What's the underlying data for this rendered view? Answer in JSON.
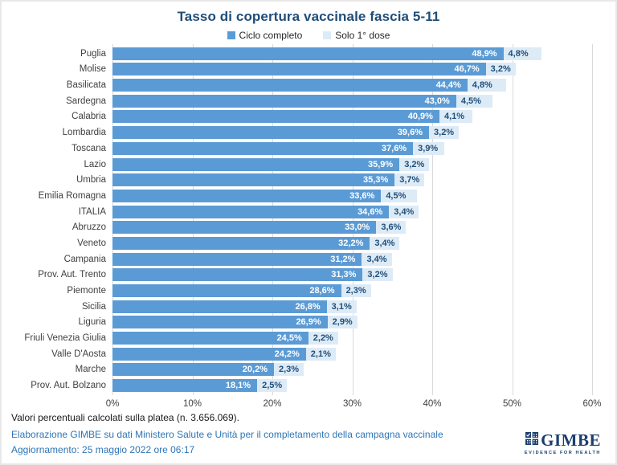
{
  "title": "Tasso di copertura vaccinale fascia 5-11",
  "legend": [
    {
      "label": "Ciclo completo",
      "color": "#5B9BD5"
    },
    {
      "label": "Solo 1° dose",
      "color": "#DDEBF7"
    }
  ],
  "chart_data": {
    "type": "bar",
    "orientation": "horizontal",
    "stacked": true,
    "title": "Tasso di copertura vaccinale fascia 5-11",
    "xlabel": "",
    "ylabel": "",
    "xlim": [
      0,
      60
    ],
    "x_ticks": [
      "0%",
      "10%",
      "20%",
      "30%",
      "40%",
      "50%",
      "60%"
    ],
    "grid": "vertical",
    "legend_position": "top",
    "categories": [
      "Puglia",
      "Molise",
      "Basilicata",
      "Sardegna",
      "Calabria",
      "Lombardia",
      "Toscana",
      "Lazio",
      "Umbria",
      "Emilia Romagna",
      "ITALIA",
      "Abruzzo",
      "Veneto",
      "Campania",
      "Prov. Aut. Trento",
      "Piemonte",
      "Sicilia",
      "Liguria",
      "Friuli Venezia Giulia",
      "Valle D'Aosta",
      "Marche",
      "Prov. Aut. Bolzano"
    ],
    "series": [
      {
        "name": "Ciclo completo",
        "color": "#5B9BD5",
        "values": [
          48.9,
          46.7,
          44.4,
          43.0,
          40.9,
          39.6,
          37.6,
          35.9,
          35.3,
          33.6,
          34.6,
          33.0,
          32.2,
          31.2,
          31.3,
          28.6,
          26.8,
          26.9,
          24.5,
          24.2,
          20.2,
          18.1
        ],
        "labels": [
          "48,9%",
          "46,7%",
          "44,4%",
          "43,0%",
          "40,9%",
          "39,6%",
          "37,6%",
          "35,9%",
          "35,3%",
          "33,6%",
          "34,6%",
          "33,0%",
          "32,2%",
          "31,2%",
          "31,3%",
          "28,6%",
          "26,8%",
          "26,9%",
          "24,5%",
          "24,2%",
          "20,2%",
          "18,1%"
        ]
      },
      {
        "name": "Solo 1° dose",
        "color": "#DDEBF7",
        "values": [
          4.8,
          3.2,
          4.8,
          4.5,
          4.1,
          3.2,
          3.9,
          3.2,
          3.7,
          4.5,
          3.4,
          3.6,
          3.4,
          3.4,
          3.2,
          2.3,
          3.1,
          2.9,
          2.2,
          2.1,
          2.3,
          2.5
        ],
        "labels": [
          "4,8%",
          "3,2%",
          "4,8%",
          "4,5%",
          "4,1%",
          "3,2%",
          "3,9%",
          "3,2%",
          "3,7%",
          "4,5%",
          "3,4%",
          "3,6%",
          "3,4%",
          "3,4%",
          "3,2%",
          "2,3%",
          "3,1%",
          "2,9%",
          "2,2%",
          "2,1%",
          "2,3%",
          "2,5%"
        ]
      }
    ]
  },
  "footer": {
    "note": "Valori percentuali calcolati sulla platea (n. 3.656.069).",
    "source": "Elaborazione GIMBE su dati Ministero Salute e Unità per il completamento della campagna vaccinale",
    "update": "Aggiornamento: 25 maggio 2022 ore 06:17"
  },
  "logo": {
    "name": "GIMBE",
    "tagline": "EVIDENCE FOR HEALTH",
    "color": "#1B3E6F"
  },
  "colors": {
    "title": "#1F4E79",
    "bar_main": "#5B9BD5",
    "bar_dose": "#DDEBF7",
    "label_on_bar": "#FFFFFF",
    "label_dose": "#1F4E79",
    "gridline": "#D9D9D9",
    "footer_accent": "#2E75B6"
  }
}
